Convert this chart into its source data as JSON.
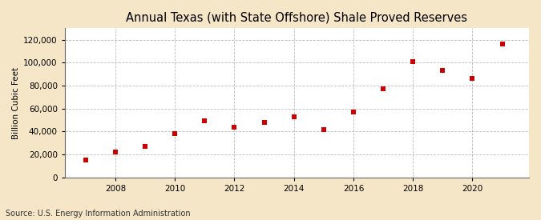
{
  "title": "Annual Texas (with State Offshore) Shale Proved Reserves",
  "ylabel": "Billion Cubic Feet",
  "source": "Source: U.S. Energy Information Administration",
  "years": [
    2007,
    2008,
    2009,
    2010,
    2011,
    2012,
    2013,
    2014,
    2015,
    2016,
    2017,
    2018,
    2019,
    2020,
    2021
  ],
  "values": [
    15000,
    22000,
    27000,
    38000,
    49000,
    44000,
    48000,
    53000,
    42000,
    57000,
    77000,
    101000,
    93000,
    86000,
    116000
  ],
  "marker_color": "#cc0000",
  "marker": "s",
  "marker_size": 4,
  "figure_bg": "#f5e6c8",
  "plot_bg": "#ffffff",
  "grid_color": "#aaaaaa",
  "ylim": [
    0,
    130000
  ],
  "yticks": [
    0,
    20000,
    40000,
    60000,
    80000,
    100000,
    120000
  ],
  "xticks": [
    2008,
    2010,
    2012,
    2014,
    2016,
    2018,
    2020
  ],
  "xlim": [
    2006.3,
    2021.9
  ],
  "title_fontsize": 10.5,
  "label_fontsize": 7.5,
  "tick_fontsize": 7.5,
  "source_fontsize": 7
}
